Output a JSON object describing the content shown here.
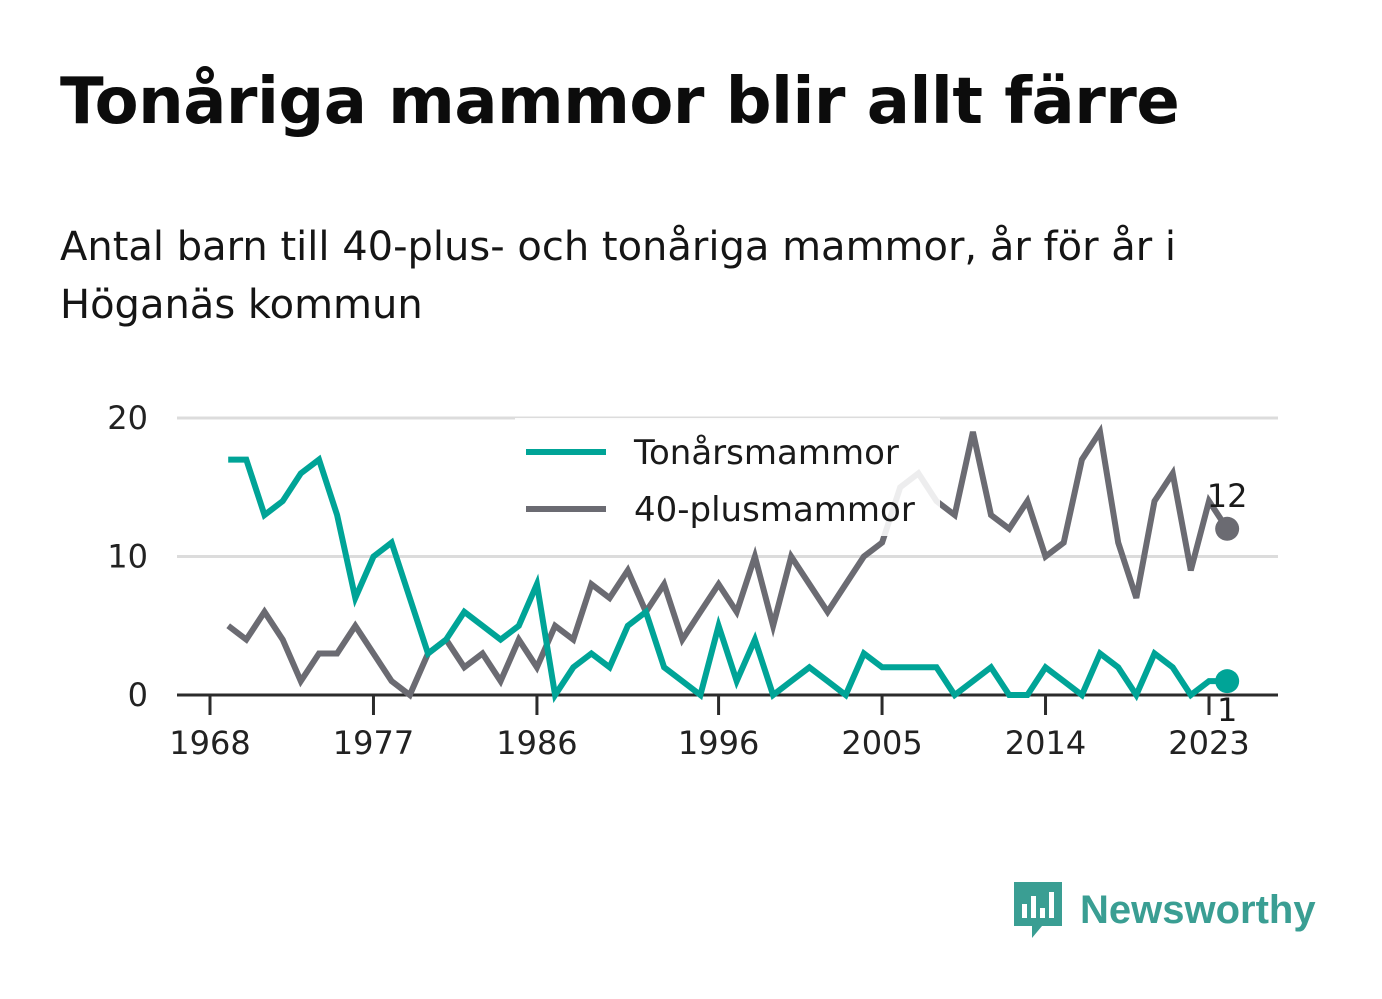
{
  "title": "Tonåriga mammor blir allt färre",
  "subtitle": "Antal barn till 40-plus- och tonåriga mammor, år för år i Höganäs kommun",
  "brand": {
    "name": "Newsworthy",
    "logo_icon": "bar-chart-speech-bubble-icon",
    "color": "#3a9e93"
  },
  "chart_data": {
    "type": "line",
    "x_range": [
      1966,
      2026
    ],
    "ylim": [
      0,
      20
    ],
    "y_ticks": [
      0,
      10,
      20
    ],
    "x_ticks": [
      1968,
      1977,
      1986,
      1996,
      2005,
      2014,
      2023
    ],
    "x_tick_labels": [
      "1968",
      "1977",
      "1986",
      "1996",
      "2005",
      "2014",
      "2023"
    ],
    "grid": "horizontal",
    "legend_position": "top-center",
    "x": [
      1969,
      1970,
      1971,
      1972,
      1973,
      1974,
      1975,
      1976,
      1977,
      1978,
      1979,
      1980,
      1981,
      1982,
      1983,
      1984,
      1985,
      1986,
      1987,
      1988,
      1989,
      1990,
      1991,
      1992,
      1993,
      1994,
      1995,
      1996,
      1997,
      1998,
      1999,
      2000,
      2001,
      2002,
      2003,
      2004,
      2005,
      2006,
      2007,
      2008,
      2009,
      2010,
      2011,
      2012,
      2013,
      2014,
      2015,
      2016,
      2017,
      2018,
      2019,
      2020,
      2021,
      2022,
      2023,
      2024
    ],
    "series": [
      {
        "name": "Tonårsmammor",
        "color": "#00a497",
        "end_label": "1",
        "values": [
          17,
          17,
          13,
          14,
          16,
          17,
          13,
          7,
          10,
          11,
          7,
          3,
          4,
          6,
          5,
          4,
          5,
          8,
          0,
          2,
          3,
          2,
          5,
          6,
          2,
          1,
          0,
          5,
          1,
          4,
          0,
          1,
          2,
          1,
          0,
          3,
          2,
          2,
          2,
          2,
          0,
          1,
          2,
          0,
          0,
          2,
          1,
          0,
          3,
          2,
          0,
          3,
          2,
          0,
          1,
          1
        ]
      },
      {
        "name": "40-plusmammor",
        "color": "#6b6b72",
        "end_label": "12",
        "values": [
          5,
          4,
          6,
          4,
          1,
          3,
          3,
          5,
          3,
          1,
          0,
          3,
          4,
          2,
          3,
          1,
          4,
          2,
          5,
          4,
          8,
          7,
          9,
          6,
          8,
          4,
          6,
          8,
          6,
          10,
          5,
          10,
          8,
          6,
          8,
          10,
          11,
          15,
          16,
          14,
          13,
          19,
          13,
          12,
          14,
          10,
          11,
          17,
          19,
          11,
          7,
          14,
          16,
          9,
          14,
          12
        ]
      }
    ]
  }
}
